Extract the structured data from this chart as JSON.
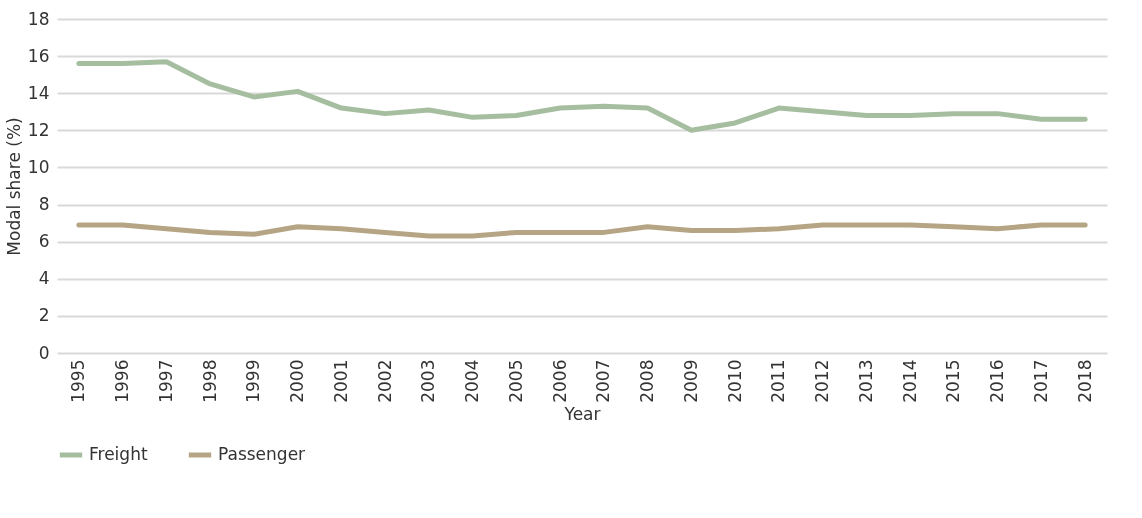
{
  "chart_data": {
    "type": "line",
    "xlabel": "Year",
    "ylabel": "Modal share (%)",
    "categories": [
      "1995",
      "1996",
      "1997",
      "1998",
      "1999",
      "2000",
      "2001",
      "2002",
      "2003",
      "2004",
      "2005",
      "2006",
      "2007",
      "2008",
      "2009",
      "2010",
      "2011",
      "2012",
      "2013",
      "2014",
      "2015",
      "2016",
      "2017",
      "2018"
    ],
    "series": [
      {
        "name": "Freight",
        "color": "#a6bea0",
        "values": [
          15.6,
          15.6,
          15.7,
          14.5,
          13.8,
          14.1,
          13.2,
          12.9,
          13.1,
          12.7,
          12.8,
          13.2,
          13.3,
          13.2,
          12.0,
          12.4,
          13.2,
          13.0,
          12.8,
          12.8,
          12.9,
          12.9,
          12.6,
          12.6
        ]
      },
      {
        "name": "Passenger",
        "color": "#b5a584",
        "values": [
          6.9,
          6.9,
          6.7,
          6.5,
          6.4,
          6.8,
          6.7,
          6.5,
          6.3,
          6.3,
          6.5,
          6.5,
          6.5,
          6.8,
          6.6,
          6.6,
          6.7,
          6.9,
          6.9,
          6.9,
          6.8,
          6.7,
          6.9,
          6.9
        ]
      }
    ],
    "ylim": [
      0,
      18
    ],
    "yticks": [
      0,
      2,
      4,
      6,
      8,
      10,
      12,
      14,
      16,
      18
    ],
    "grid": "y",
    "legend": "bottom",
    "marker": "none",
    "line_style": "solid"
  }
}
